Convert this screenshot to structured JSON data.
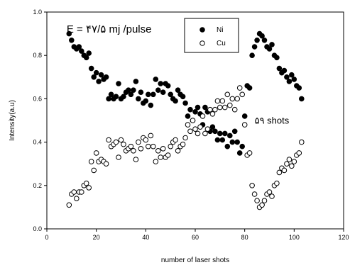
{
  "chart_data": {
    "type": "scatter",
    "title": "",
    "xlabel": "number of laser shots",
    "ylabel": "Intensity(a.u)",
    "xlim": [
      0,
      120
    ],
    "ylim": [
      0.0,
      1.0
    ],
    "x_ticks": [
      "0",
      "20",
      "40",
      "60",
      "80",
      "100",
      "120"
    ],
    "y_ticks": [
      "0.0",
      "0.2",
      "0.4",
      "0.6",
      "0.8",
      "1.0"
    ],
    "grid": false,
    "legend": {
      "placement": "top-center",
      "entries": [
        "Ni",
        "Cu"
      ]
    },
    "annotations": [
      {
        "text": "E = ۴۷/۵ mj /pulse",
        "x": 8,
        "y": 0.905
      },
      {
        "text": "۵۹ shots",
        "x": 84,
        "y": 0.485
      }
    ],
    "series": [
      {
        "name": "Ni",
        "marker": "filled-circle",
        "color": "#000000",
        "x": [
          9,
          10,
          11,
          12,
          13,
          14,
          15,
          16,
          17,
          18,
          19,
          20,
          21,
          22,
          23,
          24,
          25,
          26,
          27,
          28,
          29,
          30,
          31,
          32,
          33,
          34,
          35,
          36,
          37,
          38,
          39,
          40,
          41,
          42,
          43,
          44,
          45,
          46,
          47,
          48,
          49,
          50,
          51,
          52,
          53,
          54,
          55,
          56,
          57,
          58,
          59,
          60,
          61,
          62,
          63,
          64,
          65,
          66,
          67,
          68,
          69,
          70,
          71,
          72,
          73,
          74,
          75,
          76,
          77,
          78,
          79,
          80,
          81,
          82,
          83,
          84,
          85,
          86,
          87,
          88,
          89,
          90,
          91,
          92,
          93,
          94,
          95,
          96,
          97,
          98,
          99,
          100,
          101,
          102,
          103
        ],
        "y": [
          0.9,
          0.87,
          0.84,
          0.83,
          0.84,
          0.82,
          0.8,
          0.79,
          0.81,
          0.74,
          0.7,
          0.72,
          0.68,
          0.71,
          0.69,
          0.7,
          0.6,
          0.62,
          0.6,
          0.61,
          0.67,
          0.6,
          0.61,
          0.63,
          0.64,
          0.62,
          0.64,
          0.68,
          0.6,
          0.63,
          0.58,
          0.59,
          0.62,
          0.57,
          0.62,
          0.69,
          0.64,
          0.67,
          0.63,
          0.67,
          0.66,
          0.62,
          0.6,
          0.59,
          0.64,
          0.62,
          0.61,
          0.58,
          0.52,
          0.55,
          0.5,
          0.54,
          0.56,
          0.53,
          0.48,
          0.56,
          0.54,
          0.45,
          0.47,
          0.45,
          0.41,
          0.44,
          0.41,
          0.44,
          0.38,
          0.43,
          0.4,
          0.45,
          0.4,
          0.35,
          0.38,
          0.52,
          0.66,
          0.65,
          0.8,
          0.84,
          0.87,
          0.9,
          0.89,
          0.87,
          0.84,
          0.83,
          0.85,
          0.8,
          0.79,
          0.74,
          0.72,
          0.73,
          0.7,
          0.68,
          0.71,
          0.69,
          0.66,
          0.65,
          0.6
        ]
      },
      {
        "name": "Cu",
        "marker": "open-circle",
        "color": "#000000",
        "x": [
          9,
          10,
          11,
          12,
          13,
          14,
          15,
          16,
          17,
          18,
          19,
          20,
          21,
          22,
          23,
          24,
          25,
          26,
          27,
          28,
          29,
          30,
          31,
          32,
          33,
          34,
          35,
          36,
          37,
          38,
          39,
          40,
          41,
          42,
          43,
          44,
          45,
          46,
          47,
          48,
          49,
          50,
          51,
          52,
          53,
          54,
          55,
          56,
          57,
          58,
          59,
          60,
          61,
          62,
          63,
          64,
          65,
          66,
          67,
          68,
          69,
          70,
          71,
          72,
          73,
          74,
          75,
          76,
          77,
          78,
          79,
          80,
          81,
          82,
          83,
          84,
          85,
          86,
          87,
          88,
          89,
          90,
          91,
          92,
          93,
          94,
          95,
          96,
          97,
          98,
          99,
          100,
          101,
          102,
          103
        ],
        "y": [
          0.11,
          0.16,
          0.17,
          0.14,
          0.17,
          0.17,
          0.2,
          0.21,
          0.19,
          0.31,
          0.27,
          0.35,
          0.31,
          0.32,
          0.31,
          0.3,
          0.41,
          0.38,
          0.39,
          0.4,
          0.33,
          0.41,
          0.39,
          0.36,
          0.37,
          0.38,
          0.36,
          0.32,
          0.4,
          0.37,
          0.42,
          0.41,
          0.38,
          0.43,
          0.38,
          0.31,
          0.36,
          0.33,
          0.37,
          0.33,
          0.34,
          0.38,
          0.4,
          0.41,
          0.36,
          0.38,
          0.39,
          0.42,
          0.48,
          0.45,
          0.5,
          0.46,
          0.44,
          0.47,
          0.52,
          0.44,
          0.46,
          0.55,
          0.53,
          0.55,
          0.59,
          0.56,
          0.59,
          0.56,
          0.62,
          0.57,
          0.6,
          0.55,
          0.6,
          0.65,
          0.62,
          0.48,
          0.34,
          0.35,
          0.2,
          0.16,
          0.13,
          0.1,
          0.11,
          0.13,
          0.16,
          0.17,
          0.15,
          0.2,
          0.21,
          0.26,
          0.28,
          0.27,
          0.3,
          0.32,
          0.29,
          0.31,
          0.34,
          0.35,
          0.4
        ]
      }
    ]
  }
}
